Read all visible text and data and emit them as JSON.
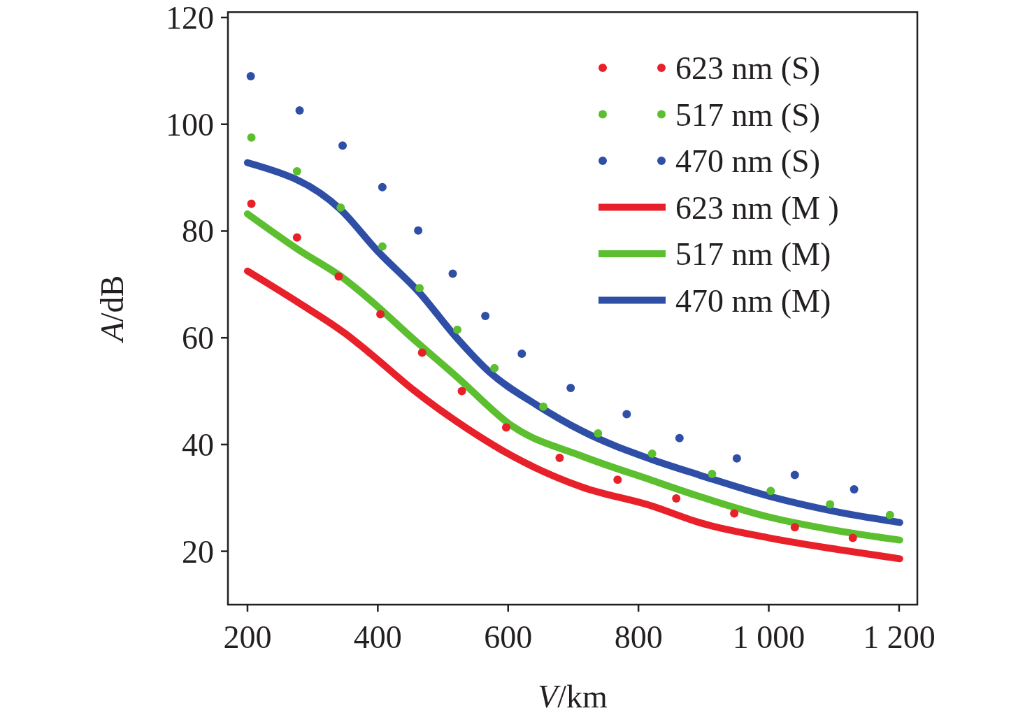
{
  "chart_data": {
    "type": "line",
    "xlabel": "V/km",
    "ylabel": "A/dB",
    "xlim": [
      170,
      1228
    ],
    "ylim": [
      10,
      121
    ],
    "xticks": [
      200,
      400,
      600,
      800,
      {
        "value": 1000,
        "label": "1 000"
      },
      {
        "value": 1200,
        "label": "1 200"
      }
    ],
    "yticks": [
      20,
      40,
      60,
      80,
      100,
      120
    ],
    "grid": false,
    "legend": "top right",
    "line_style": "solid",
    "series": [
      {
        "name": "623 nm (S)",
        "type": "scatter",
        "marker": "circle",
        "color": "#e8202a",
        "x": [
          206,
          276,
          340,
          404,
          468,
          529,
          597,
          679,
          768,
          858,
          947,
          1040,
          1129
        ],
        "values": [
          85.1,
          78.8,
          71.5,
          64.4,
          57.2,
          50.0,
          43.2,
          37.5,
          33.4,
          29.9,
          27.1,
          24.5,
          22.5
        ]
      },
      {
        "name": "517 nm (S)",
        "type": "scatter",
        "marker": "circle",
        "color": "#5cbf2f",
        "x": [
          206,
          276,
          343,
          407,
          464,
          522,
          579,
          654,
          738,
          821,
          913,
          1003,
          1094,
          1186
        ],
        "values": [
          97.5,
          91.2,
          84.4,
          77.1,
          69.3,
          61.5,
          54.3,
          47.1,
          42.1,
          38.3,
          34.5,
          31.3,
          28.8,
          26.8
        ]
      },
      {
        "name": "470 nm (S)",
        "type": "scatter",
        "marker": "circle",
        "color": "#2f4ea6",
        "x": [
          205,
          280,
          346,
          407,
          462,
          515,
          565,
          621,
          696,
          782,
          863,
          951,
          1040,
          1131
        ],
        "values": [
          109.0,
          102.6,
          96.0,
          88.2,
          80.1,
          72.0,
          64.1,
          57.0,
          50.6,
          45.7,
          41.2,
          37.4,
          34.3,
          31.6
        ]
      },
      {
        "name": "623 nm (M )",
        "color": "#e8202a",
        "x": [
          200,
          278,
          350,
          385,
          457,
          537,
          607,
          714,
          818,
          893,
          1001,
          1108,
          1201
        ],
        "values": [
          72.5,
          66.6,
          60.8,
          57.4,
          50.0,
          43.0,
          37.8,
          32.0,
          28.6,
          25.4,
          22.5,
          20.3,
          18.6
        ]
      },
      {
        "name": "517 nm (M)",
        "color": "#5cbf2f",
        "x": [
          200,
          278,
          350,
          385,
          457,
          522,
          607,
          714,
          818,
          893,
          1001,
          1108,
          1201
        ],
        "values": [
          83.2,
          76.5,
          70.9,
          67.4,
          59.5,
          52.6,
          43.4,
          37.8,
          33.4,
          30.3,
          26.4,
          23.8,
          22.1
        ]
      },
      {
        "name": "470 nm (M)",
        "color": "#2f4ea6",
        "x": [
          200,
          343,
          400,
          465,
          518,
          572,
          644,
          714,
          818,
          893,
          1001,
          1108,
          1201
        ],
        "values": [
          92.8,
          84.0,
          76.2,
          68.3,
          60.4,
          53.5,
          47.4,
          42.5,
          37.3,
          34.3,
          30.3,
          27.3,
          25.4
        ]
      }
    ]
  }
}
